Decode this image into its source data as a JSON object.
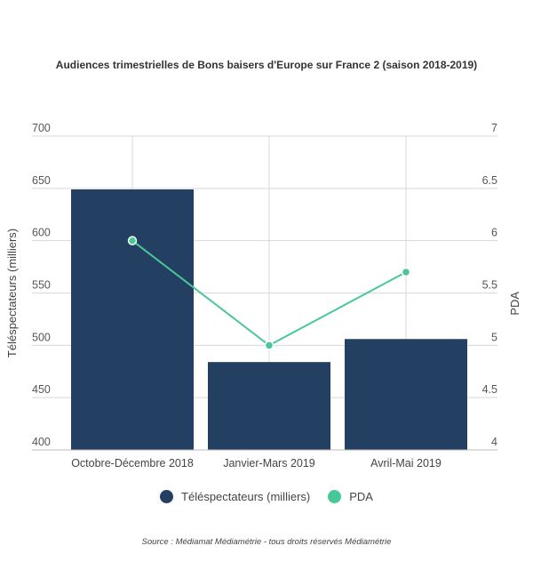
{
  "chart_data": {
    "type": "bar",
    "title": "Audiences trimestrielles de Bons baisers d'Europe sur France 2 (saison 2018-2019)",
    "categories": [
      "Octobre-Décembre 2018",
      "Janvier-Mars 2019",
      "Avril-Mai 2019"
    ],
    "series": [
      {
        "name": "Téléspectateurs (milliers)",
        "type": "bar",
        "axis": "left",
        "values": [
          649,
          484,
          506
        ],
        "color": "#233f62"
      },
      {
        "name": "PDA",
        "type": "line",
        "axis": "right",
        "values": [
          6.0,
          5.0,
          5.7
        ],
        "color": "#47c896"
      }
    ],
    "y_left": {
      "label": "Téléspectateurs (milliers)",
      "ylim": [
        400,
        700
      ],
      "ticks": [
        "400",
        "450",
        "500",
        "550",
        "600",
        "650",
        "700"
      ]
    },
    "y_right": {
      "label": "PDA",
      "ylim": [
        4,
        7
      ],
      "ticks": [
        "4",
        "4.5",
        "5",
        "5.5",
        "6",
        "6.5",
        "7"
      ]
    },
    "grid": true,
    "legend_position": "bottom"
  },
  "source": "Source : Médiamat Médiamétrie - tous droits réservés Médiamétrie"
}
